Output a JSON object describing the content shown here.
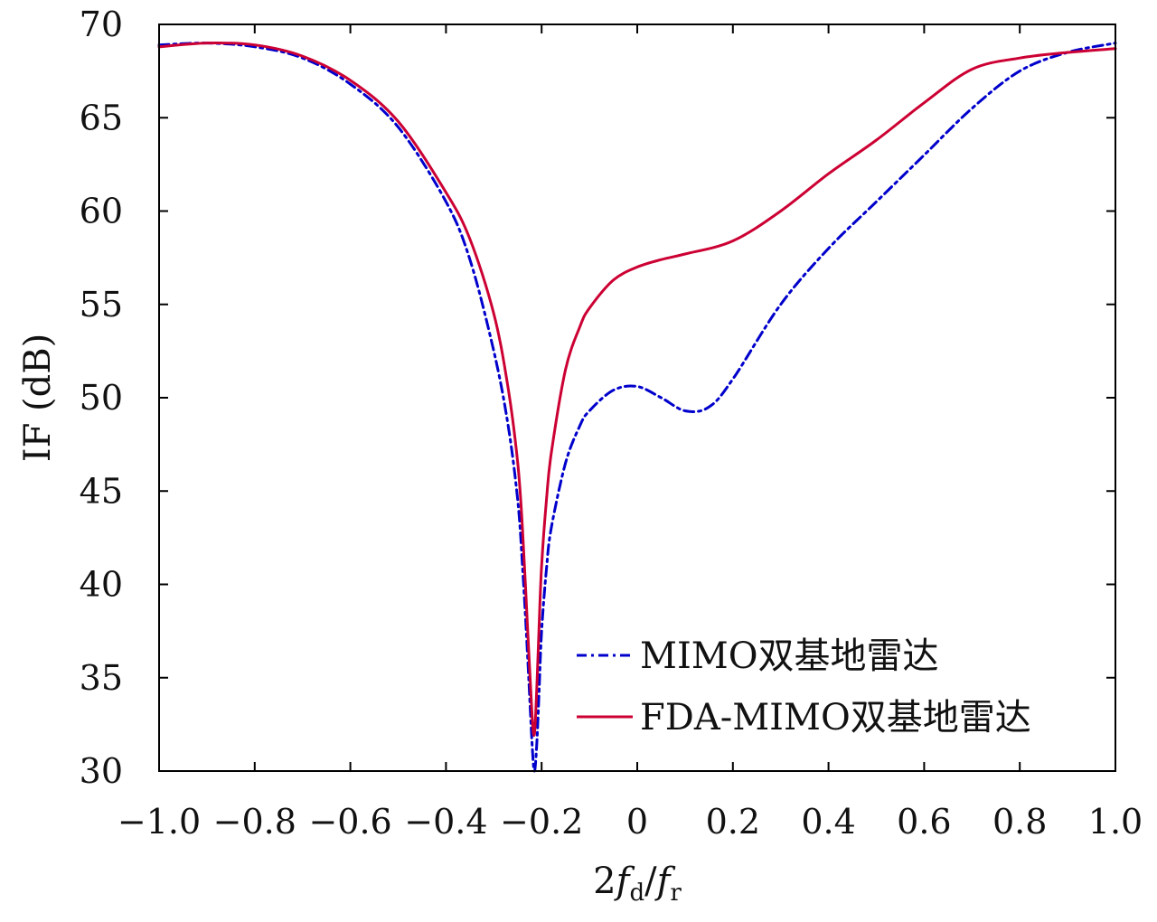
{
  "chart_data": {
    "type": "line",
    "title": "",
    "xlabel": "2fd/fr",
    "xlabel_parts": {
      "lead": "2",
      "f1": "f",
      "sub1": "d",
      "slash": "/",
      "f2": "f",
      "sub2": "r"
    },
    "ylabel": "IF (dB)",
    "xlim": [
      -1.0,
      1.0
    ],
    "ylim": [
      30,
      70
    ],
    "xticks": [
      -1.0,
      -0.8,
      -0.6,
      -0.4,
      -0.2,
      0,
      0.2,
      0.4,
      0.6,
      0.8,
      1.0
    ],
    "xtick_labels": [
      "−1.0",
      "−0.8",
      "−0.6",
      "−0.4",
      "−0.2",
      "0",
      "0.2",
      "0.4",
      "0.6",
      "0.8",
      "1.0"
    ],
    "yticks": [
      30,
      35,
      40,
      45,
      50,
      55,
      60,
      65,
      70
    ],
    "ytick_labels": [
      "30",
      "35",
      "40",
      "45",
      "50",
      "55",
      "60",
      "65",
      "70"
    ],
    "grid": false,
    "legend_position": "bottom-right",
    "series": [
      {
        "name": "MIMO双基地雷达",
        "color": "#0000cc",
        "style": "dashdot",
        "x": [
          -1.0,
          -0.9,
          -0.8,
          -0.7,
          -0.6,
          -0.5,
          -0.4,
          -0.35,
          -0.3,
          -0.27,
          -0.25,
          -0.24,
          -0.23,
          -0.22,
          -0.215,
          -0.21,
          -0.205,
          -0.2,
          -0.19,
          -0.18,
          -0.15,
          -0.12,
          -0.1,
          -0.05,
          0.0,
          0.05,
          0.1,
          0.15,
          0.2,
          0.3,
          0.4,
          0.5,
          0.6,
          0.7,
          0.8,
          0.9,
          1.0
        ],
        "y": [
          68.9,
          69.0,
          68.8,
          68.2,
          66.8,
          64.5,
          60.5,
          57.4,
          52.5,
          48.5,
          44.5,
          41.0,
          36.5,
          31.5,
          30.0,
          31.5,
          34.5,
          37.5,
          40.8,
          43.0,
          46.5,
          48.5,
          49.3,
          50.4,
          50.6,
          50.0,
          49.3,
          49.5,
          51.0,
          55.0,
          58.0,
          60.5,
          63.0,
          65.5,
          67.5,
          68.5,
          69.0
        ]
      },
      {
        "name": "FDA-MIMO双基地雷达",
        "color": "#cc0033",
        "style": "solid",
        "x": [
          -1.0,
          -0.9,
          -0.8,
          -0.7,
          -0.6,
          -0.5,
          -0.4,
          -0.35,
          -0.3,
          -0.27,
          -0.25,
          -0.24,
          -0.23,
          -0.22,
          -0.215,
          -0.21,
          -0.205,
          -0.2,
          -0.19,
          -0.18,
          -0.15,
          -0.12,
          -0.1,
          -0.05,
          0.0,
          0.05,
          0.1,
          0.2,
          0.3,
          0.4,
          0.5,
          0.6,
          0.7,
          0.8,
          0.9,
          1.0
        ],
        "y": [
          68.8,
          69.0,
          68.9,
          68.3,
          67.0,
          64.8,
          61.0,
          58.5,
          54.5,
          50.5,
          46.5,
          43.0,
          38.0,
          33.0,
          32.0,
          34.5,
          38.0,
          41.0,
          44.5,
          47.0,
          51.5,
          53.8,
          54.8,
          56.3,
          57.0,
          57.4,
          57.7,
          58.4,
          60.0,
          62.0,
          63.8,
          65.8,
          67.6,
          68.2,
          68.5,
          68.7
        ]
      }
    ]
  }
}
